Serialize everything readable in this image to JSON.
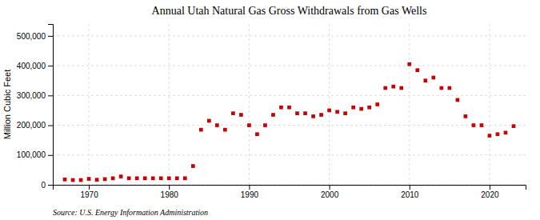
{
  "chart_data": {
    "type": "scatter",
    "title": "Annual Utah Natural Gas Gross Withdrawals from Gas Wells",
    "ylabel": "Million Cubic Feet",
    "source": "Source: U.S. Energy Information Administration",
    "x": [
      1967,
      1968,
      1969,
      1970,
      1971,
      1972,
      1973,
      1974,
      1975,
      1976,
      1977,
      1978,
      1979,
      1980,
      1981,
      1982,
      1983,
      1984,
      1985,
      1986,
      1987,
      1988,
      1989,
      1990,
      1991,
      1992,
      1993,
      1994,
      1995,
      1996,
      1997,
      1998,
      1999,
      2000,
      2001,
      2002,
      2003,
      2004,
      2005,
      2006,
      2007,
      2008,
      2009,
      2010,
      2011,
      2012,
      2013,
      2014,
      2015,
      2016,
      2017,
      2018,
      2019,
      2020,
      2021,
      2022,
      2023
    ],
    "values": [
      18000,
      16000,
      16000,
      20000,
      17000,
      19000,
      22000,
      28000,
      22000,
      22000,
      22000,
      22000,
      22000,
      22000,
      22000,
      22000,
      63000,
      185000,
      215000,
      200000,
      185000,
      240000,
      235000,
      200000,
      170000,
      200000,
      235000,
      260000,
      260000,
      240000,
      240000,
      230000,
      235000,
      250000,
      245000,
      240000,
      260000,
      255000,
      260000,
      270000,
      325000,
      330000,
      325000,
      405000,
      385000,
      350000,
      360000,
      325000,
      325000,
      285000,
      230000,
      200000,
      200000,
      165000,
      170000,
      175000,
      197000
    ],
    "color": "#cc0000",
    "marker": "square",
    "xlim": [
      1965.5,
      2024.5
    ],
    "xticks": [
      1970,
      1980,
      1990,
      2000,
      2010,
      2020
    ],
    "ylim": [
      0,
      540000
    ],
    "yticks": [
      0,
      {
        "value": 100000,
        "label": "100,000"
      },
      {
        "value": 200000,
        "label": "200,000"
      },
      {
        "value": 300000,
        "label": "300,000"
      },
      {
        "value": 400000,
        "label": "400,000"
      },
      {
        "value": 500000,
        "label": "500,000"
      }
    ],
    "grid": true
  }
}
